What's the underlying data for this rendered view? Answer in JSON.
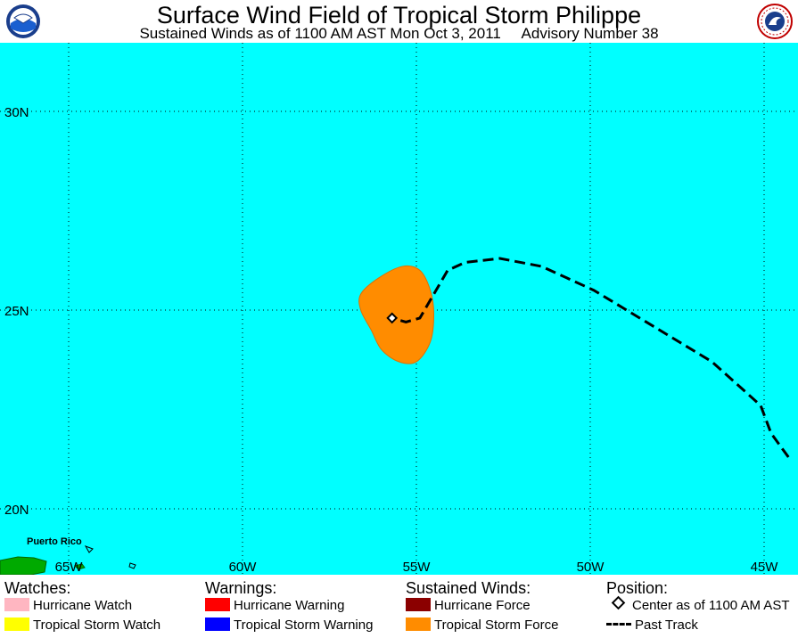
{
  "header": {
    "title": "Surface Wind Field of Tropical Storm Philippe",
    "subtitle": "Sustained Winds as of 1100 AM AST Mon Oct 3, 2011     Advisory Number 38"
  },
  "map": {
    "ocean_color": "#00ffff",
    "land_color": "#00aa00",
    "ts_force_color": "#ff8c00",
    "lat_labels": [
      "30N",
      "25N",
      "20N"
    ],
    "lon_labels": [
      "65W",
      "60W",
      "55W",
      "50W",
      "45W"
    ],
    "place_label": "Puerto Rico",
    "storm_center": {
      "lat": 24.8,
      "lon": -55.7
    },
    "past_track": [
      {
        "lon": -44.3,
        "lat": 21.3
      },
      {
        "lon": -44.8,
        "lat": 21.9
      },
      {
        "lon": -45.1,
        "lat": 22.6
      },
      {
        "lon": -46.5,
        "lat": 23.7
      },
      {
        "lon": -48.2,
        "lat": 24.6
      },
      {
        "lon": -49.9,
        "lat": 25.5
      },
      {
        "lon": -51.4,
        "lat": 26.1
      },
      {
        "lon": -52.6,
        "lat": 26.3
      },
      {
        "lon": -53.6,
        "lat": 26.2
      },
      {
        "lon": -54.1,
        "lat": 26.0
      },
      {
        "lon": -54.5,
        "lat": 25.4
      },
      {
        "lon": -54.9,
        "lat": 24.8
      },
      {
        "lon": -55.3,
        "lat": 24.7
      },
      {
        "lon": -55.7,
        "lat": 24.8
      }
    ],
    "ts_wind_field": [
      {
        "lon": -56.1,
        "lat": 25.8
      },
      {
        "lon": -55.4,
        "lat": 26.1
      },
      {
        "lon": -54.9,
        "lat": 26.0
      },
      {
        "lon": -54.6,
        "lat": 25.5
      },
      {
        "lon": -54.5,
        "lat": 24.9
      },
      {
        "lon": -54.6,
        "lat": 24.2
      },
      {
        "lon": -55.0,
        "lat": 23.7
      },
      {
        "lon": -55.5,
        "lat": 23.7
      },
      {
        "lon": -56.0,
        "lat": 24.0
      },
      {
        "lon": -56.3,
        "lat": 24.5
      },
      {
        "lon": -56.6,
        "lat": 25.0
      },
      {
        "lon": -56.6,
        "lat": 25.4
      }
    ]
  },
  "legend": {
    "watches": {
      "heading": "Watches:",
      "items": [
        {
          "label": "Hurricane Watch",
          "color": "#ffb6c1"
        },
        {
          "label": "Tropical Storm Watch",
          "color": "#ffff00"
        }
      ]
    },
    "warnings": {
      "heading": "Warnings:",
      "items": [
        {
          "label": "Hurricane Warning",
          "color": "#ff0000"
        },
        {
          "label": "Tropical Storm Warning",
          "color": "#0000ff"
        }
      ]
    },
    "winds": {
      "heading": "Sustained Winds:",
      "items": [
        {
          "label": "Hurricane Force",
          "color": "#8b0000"
        },
        {
          "label": "Tropical Storm Force",
          "color": "#ff8c00"
        }
      ]
    },
    "position": {
      "heading": "Position:",
      "center_label": "Center as of 1100 AM AST",
      "track_label": "Past Track"
    }
  }
}
